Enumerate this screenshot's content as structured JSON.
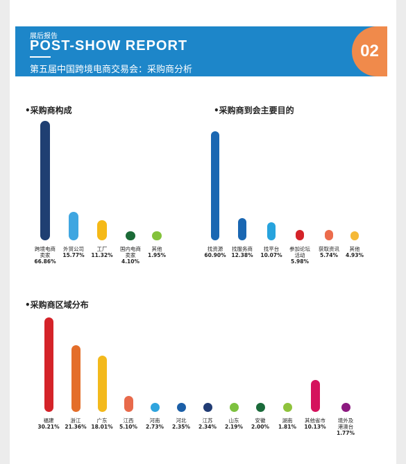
{
  "header": {
    "subtitle": "展后报告",
    "title": "POST-SHOW REPORT",
    "chinese_title": "第五届中国跨境电商交易会：采购商分析",
    "page_number": "02",
    "color": "#1d86c9",
    "badge_color": "#f08a4b"
  },
  "chart_data": [
    {
      "type": "bar",
      "title": "•采购商构成",
      "categories": [
        "跨境电商卖家",
        "外贸公司",
        "工厂",
        "国内电商卖家",
        "其他"
      ],
      "values": [
        66.86,
        15.77,
        11.32,
        4.1,
        1.95
      ],
      "value_labels": [
        "66.86%",
        "15.77%",
        "11.32%",
        "4.10%",
        "1.95%"
      ],
      "colors": [
        "#1f3f72",
        "#3fa6e1",
        "#f5b917",
        "#1b6a37",
        "#83c23b"
      ]
    },
    {
      "type": "bar",
      "title": "•采购商到会主要目的",
      "categories": [
        "找资源",
        "找服务商",
        "找平台",
        "参加论坛活动",
        "获取资讯",
        "其他"
      ],
      "values": [
        60.9,
        12.38,
        10.07,
        5.98,
        5.74,
        4.93
      ],
      "value_labels": [
        "60.90%",
        "12.38%",
        "10.07%",
        "5.98%",
        "5.74%",
        "4.93%"
      ],
      "colors": [
        "#1a67b2",
        "#1a67b2",
        "#27a3dd",
        "#d42329",
        "#ec6c4c",
        "#f5b937"
      ]
    },
    {
      "type": "bar",
      "title": "•采购商区域分布",
      "categories": [
        "福建",
        "浙江",
        "广东",
        "江西",
        "河南",
        "河北",
        "江苏",
        "山东",
        "安徽",
        "湖南",
        "其他省市",
        "境外及港澳台"
      ],
      "values": [
        30.21,
        21.36,
        18.01,
        5.1,
        2.73,
        2.35,
        2.34,
        2.19,
        2.0,
        1.81,
        10.13,
        1.77
      ],
      "value_labels": [
        "30.21%",
        "21.36%",
        "18.01%",
        "5.10%",
        "2.73%",
        "2.35%",
        "2.34%",
        "2.19%",
        "2.00%",
        "1.81%",
        "10.13%",
        "1.77%"
      ],
      "colors": [
        "#d42329",
        "#e46e2a",
        "#f3b91c",
        "#e86a4b",
        "#2fa4de",
        "#1b5fa7",
        "#213c74",
        "#7dc13f",
        "#1a6a3a",
        "#8fc33c",
        "#d5125d",
        "#8c1a80"
      ]
    }
  ]
}
